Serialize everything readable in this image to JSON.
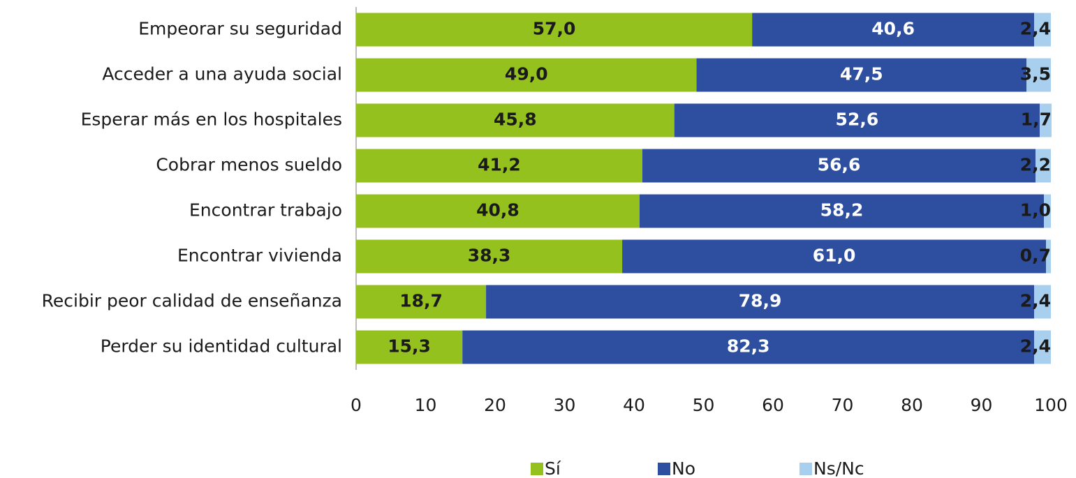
{
  "chart_data": {
    "type": "stacked_bar_horizontal",
    "categories": [
      "Empeorar su seguridad",
      "Acceder a una ayuda social",
      "Esperar más en los hospitales",
      "Cobrar menos sueldo",
      "Encontrar trabajo",
      "Encontrar vivienda",
      "Recibir peor calidad de enseñanza",
      "Perder su identidad cultural"
    ],
    "series": [
      {
        "name": "Sí",
        "color": "#95c11f",
        "label_color": "#1a1a1a",
        "values": [
          57.0,
          49.0,
          45.8,
          41.2,
          40.8,
          38.3,
          18.7,
          15.3
        ],
        "value_labels": [
          "57,0",
          "49,0",
          "45,8",
          "41,2",
          "40,8",
          "38,3",
          "18,7",
          "15,3"
        ]
      },
      {
        "name": "No",
        "color": "#2e4fa0",
        "label_color": "#ffffff",
        "values": [
          40.6,
          47.5,
          52.6,
          56.6,
          58.2,
          61.0,
          78.9,
          82.3
        ],
        "value_labels": [
          "40,6",
          "47,5",
          "52,6",
          "56,6",
          "58,2",
          "61,0",
          "78,9",
          "82,3"
        ]
      },
      {
        "name": "Ns/Nc",
        "color": "#a9cfee",
        "label_color": "#1a1a1a",
        "values": [
          2.4,
          3.5,
          1.7,
          2.2,
          1.0,
          0.7,
          2.4,
          2.4
        ],
        "value_labels": [
          "2,4",
          "3,5",
          "1,7",
          "2,2",
          "1,0",
          "0,7",
          "2,4",
          "2,4"
        ]
      }
    ],
    "xlim": [
      0,
      100
    ],
    "xticks": [
      0,
      10,
      20,
      30,
      40,
      50,
      60,
      70,
      80,
      90,
      100
    ],
    "legend": "bottom"
  }
}
